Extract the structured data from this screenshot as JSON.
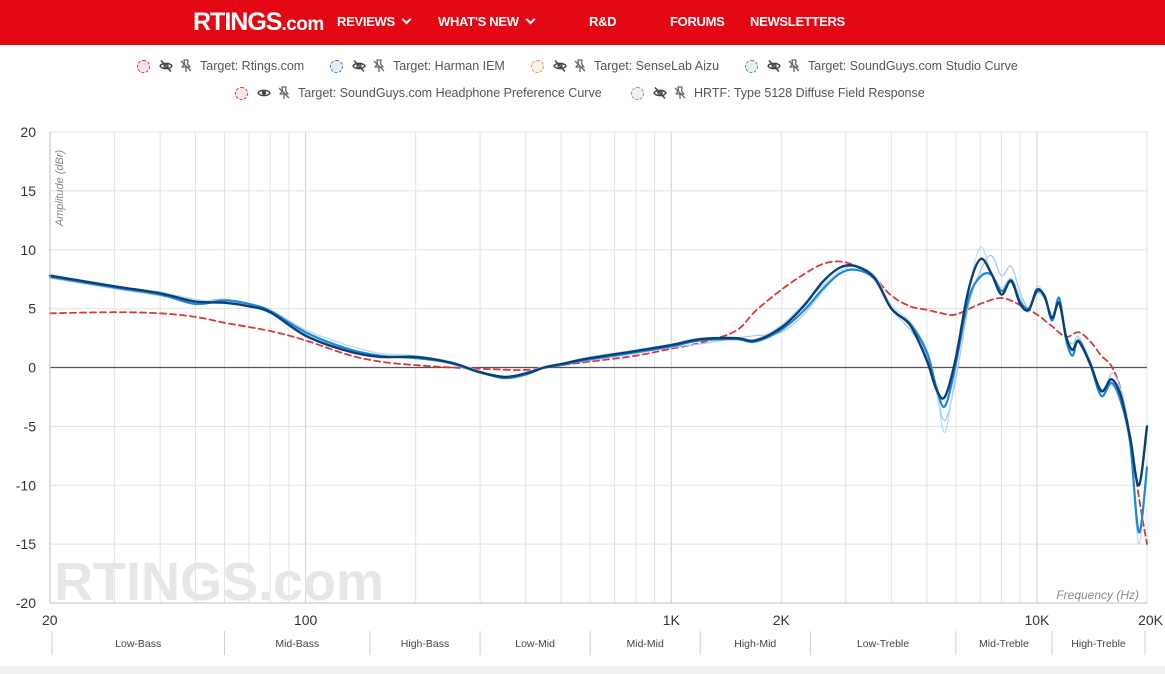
{
  "header": {
    "logo_main": "RTINGS",
    "logo_suffix": ".com",
    "nav": [
      {
        "label": "REVIEWS",
        "dropdown": true
      },
      {
        "label": "WHAT'S NEW",
        "dropdown": true
      },
      {
        "label": "R&D",
        "dropdown": false
      },
      {
        "label": "FORUMS",
        "dropdown": false
      },
      {
        "label": "NEWSLETTERS",
        "dropdown": false
      }
    ],
    "colors": {
      "brand": "#e30613"
    }
  },
  "legend": [
    {
      "label": "Target: Rtings.com",
      "swatch_color": "#d9363e",
      "visible": false
    },
    {
      "label": "Target: Harman IEM",
      "swatch_color": "#4a7bb7",
      "visible": false
    },
    {
      "label": "Target: SenseLab Aizu",
      "swatch_color": "#d99a4a",
      "visible": false
    },
    {
      "label": "Target: SoundGuys.com Studio Curve",
      "swatch_color": "#4a9a5a",
      "visible": false
    },
    {
      "label": "Target: SoundGuys.com Headphone Preference Curve",
      "swatch_color": "#d9363e",
      "visible": true
    },
    {
      "label": "HRTF: Type 5128 Diffuse Field Response",
      "swatch_color": "#8a8fa8",
      "visible": false
    }
  ],
  "icons": {
    "hidden": "eye-slash-icon",
    "visible": "eye-icon",
    "pin": "pin-off-icon"
  },
  "chart_data": {
    "type": "line",
    "ylabel": "Amplitude (dBr)",
    "xlabel": "Frequency (Hz)",
    "xscale": "log",
    "xlim": [
      20,
      20000
    ],
    "ylim": [
      -20,
      20
    ],
    "yticks": [
      -20,
      -15,
      -10,
      -5,
      0,
      5,
      10,
      15,
      20
    ],
    "xticks": [
      {
        "value": 20,
        "label": "20"
      },
      {
        "value": 100,
        "label": "100"
      },
      {
        "value": 1000,
        "label": "1K"
      },
      {
        "value": 2000,
        "label": "2K"
      },
      {
        "value": 10000,
        "label": "10K"
      },
      {
        "value": 20000,
        "label": "20K"
      }
    ],
    "grid": true,
    "watermark": "RTINGS.com",
    "bands": [
      {
        "label": "Low-Bass",
        "from": 20,
        "to": 60
      },
      {
        "label": "Mid-Bass",
        "from": 60,
        "to": 150
      },
      {
        "label": "High-Bass",
        "from": 150,
        "to": 300
      },
      {
        "label": "Low-Mid",
        "from": 300,
        "to": 600
      },
      {
        "label": "Mid-Mid",
        "from": 600,
        "to": 1200
      },
      {
        "label": "High-Mid",
        "from": 1200,
        "to": 2400
      },
      {
        "label": "Low-Treble",
        "from": 2400,
        "to": 6000
      },
      {
        "label": "Mid-Treble",
        "from": 6000,
        "to": 11000
      },
      {
        "label": "High-Treble",
        "from": 11000,
        "to": 20000
      }
    ],
    "series": [
      {
        "style": "target",
        "color": "#d9363e",
        "dashed": true,
        "x": [
          20,
          30,
          40,
          50,
          60,
          80,
          100,
          130,
          160,
          200,
          250,
          300,
          400,
          500,
          600,
          800,
          1000,
          1200,
          1500,
          1700,
          2000,
          2300,
          2600,
          2900,
          3200,
          3600,
          4000,
          4500,
          5000,
          5500,
          6000,
          7000,
          8000,
          9000,
          10000,
          11000,
          12000,
          13000,
          14000,
          15000,
          16000,
          17000,
          18000,
          19000,
          20000
        ],
        "y": [
          4.6,
          4.7,
          4.6,
          4.3,
          3.8,
          3.1,
          2.3,
          1.1,
          0.5,
          0.2,
          0.0,
          -0.1,
          -0.2,
          0.2,
          0.5,
          1.0,
          1.6,
          2.1,
          3.1,
          4.8,
          6.6,
          7.9,
          8.8,
          9.0,
          8.6,
          7.6,
          6.1,
          5.2,
          4.9,
          4.6,
          4.5,
          5.4,
          5.9,
          5.3,
          4.5,
          3.5,
          2.6,
          3.0,
          2.2,
          1.0,
          0.1,
          -2.0,
          -6.0,
          -11.0,
          -15.0
        ]
      },
      {
        "style": "light",
        "color": "#9fc9e8",
        "dashed": false,
        "x": [
          20,
          30,
          40,
          50,
          60,
          70,
          80,
          100,
          130,
          160,
          200,
          250,
          300,
          350,
          400,
          450,
          500,
          600,
          800,
          1000,
          1200,
          1500,
          1700,
          2000,
          2300,
          2600,
          2900,
          3200,
          3600,
          4000,
          4500,
          5000,
          5300,
          5600,
          6000,
          6500,
          7000,
          7500,
          8000,
          8500,
          9000,
          9500,
          10000,
          10500,
          11000,
          11500,
          12000,
          12500,
          13000,
          14000,
          15000,
          16000,
          17000,
          18000,
          19000,
          20000
        ],
        "y": [
          7.6,
          6.7,
          6.1,
          5.6,
          5.8,
          5.2,
          4.6,
          2.9,
          1.5,
          1.0,
          0.8,
          0.3,
          -0.5,
          -0.8,
          -0.5,
          0.0,
          0.2,
          0.6,
          1.2,
          1.7,
          2.0,
          2.5,
          2.7,
          3.0,
          4.5,
          6.5,
          8.0,
          8.3,
          7.5,
          5.0,
          3.2,
          1.0,
          -2.0,
          -4.5,
          -1.0,
          5.2,
          8.2,
          9.5,
          7.8,
          8.6,
          6.4,
          5.0,
          6.3,
          5.8,
          3.9,
          6.0,
          2.8,
          2.0,
          2.6,
          0.5,
          -2.5,
          -0.5,
          -2.0,
          -6.0,
          -14.0,
          -9.0
        ]
      },
      {
        "style": "light",
        "color": "#b9d9ef",
        "dashed": false,
        "x": [
          20,
          30,
          40,
          50,
          60,
          70,
          80,
          100,
          130,
          160,
          200,
          250,
          300,
          350,
          400,
          450,
          500,
          600,
          800,
          1000,
          1200,
          1500,
          1700,
          2000,
          2300,
          2600,
          2900,
          3200,
          3600,
          4000,
          4500,
          5000,
          5300,
          5600,
          6000,
          6500,
          7000,
          7500,
          8000,
          8500,
          9000,
          9500,
          10000,
          10500,
          11000,
          11500,
          12000,
          12500,
          13000,
          14000,
          15000,
          16000,
          17000,
          18000,
          19000,
          20000
        ],
        "y": [
          7.9,
          6.9,
          6.4,
          5.8,
          5.5,
          5.4,
          4.9,
          3.2,
          1.9,
          1.2,
          1.0,
          0.5,
          -0.3,
          -0.9,
          -0.4,
          0.1,
          0.3,
          0.9,
          1.5,
          2.0,
          2.5,
          2.4,
          2.4,
          3.6,
          5.4,
          7.0,
          8.2,
          8.6,
          7.8,
          5.3,
          3.9,
          1.5,
          -1.5,
          -5.5,
          -0.2,
          6.4,
          10.2,
          8.1,
          6.8,
          7.6,
          6.0,
          4.7,
          6.9,
          6.0,
          4.4,
          5.8,
          2.1,
          1.4,
          2.4,
          0.0,
          -1.8,
          -1.5,
          -3.0,
          -6.5,
          -15.0,
          -8.0
        ]
      },
      {
        "style": "mid",
        "color": "#1e88d8",
        "dashed": false,
        "x": [
          20,
          30,
          40,
          50,
          60,
          70,
          80,
          100,
          130,
          160,
          200,
          250,
          300,
          350,
          400,
          450,
          500,
          600,
          800,
          1000,
          1200,
          1500,
          1700,
          2000,
          2300,
          2600,
          2900,
          3200,
          3600,
          4000,
          4500,
          5000,
          5300,
          5600,
          6000,
          6500,
          7000,
          7500,
          8000,
          8500,
          9000,
          9500,
          10000,
          10500,
          11000,
          11500,
          12000,
          12500,
          13000,
          14000,
          15000,
          16000,
          17000,
          18000,
          19000,
          20000
        ],
        "y": [
          7.7,
          6.8,
          6.2,
          5.4,
          5.7,
          5.4,
          4.8,
          3.0,
          1.6,
          1.0,
          0.8,
          0.4,
          -0.4,
          -0.9,
          -0.6,
          0.0,
          0.2,
          0.7,
          1.3,
          1.8,
          2.3,
          2.4,
          2.2,
          3.2,
          4.8,
          6.7,
          8.0,
          8.3,
          7.5,
          5.0,
          3.7,
          1.3,
          -1.6,
          -3.3,
          0.3,
          5.8,
          7.7,
          7.9,
          6.5,
          7.3,
          5.6,
          5.0,
          6.4,
          6.1,
          4.0,
          5.9,
          2.5,
          1.0,
          2.3,
          0.2,
          -2.4,
          -1.3,
          -3.0,
          -6.5,
          -14.0,
          -8.5
        ]
      },
      {
        "style": "dark",
        "color": "#0b3f73",
        "dashed": false,
        "x": [
          20,
          30,
          40,
          50,
          60,
          70,
          80,
          100,
          130,
          160,
          200,
          250,
          300,
          350,
          400,
          450,
          500,
          600,
          800,
          1000,
          1200,
          1500,
          1700,
          2000,
          2300,
          2600,
          2900,
          3200,
          3600,
          4000,
          4500,
          5000,
          5300,
          5600,
          6000,
          6500,
          7000,
          7500,
          8000,
          8500,
          9000,
          9500,
          10000,
          10500,
          11000,
          11500,
          12000,
          12500,
          13000,
          14000,
          15000,
          16000,
          17000,
          18000,
          19000,
          20000
        ],
        "y": [
          7.8,
          6.9,
          6.3,
          5.6,
          5.5,
          5.2,
          4.7,
          2.7,
          1.4,
          0.9,
          0.9,
          0.4,
          -0.4,
          -0.8,
          -0.5,
          0.0,
          0.3,
          0.8,
          1.4,
          1.9,
          2.4,
          2.5,
          2.3,
          3.4,
          5.2,
          7.3,
          8.5,
          8.6,
          7.6,
          5.0,
          3.6,
          0.6,
          -1.8,
          -2.5,
          0.8,
          6.6,
          9.2,
          8.0,
          6.2,
          7.4,
          5.4,
          4.9,
          6.6,
          6.0,
          4.2,
          5.5,
          2.7,
          1.5,
          2.2,
          0.3,
          -2.0,
          -1.0,
          -2.5,
          -6.0,
          -10.0,
          -5.0
        ]
      }
    ]
  }
}
